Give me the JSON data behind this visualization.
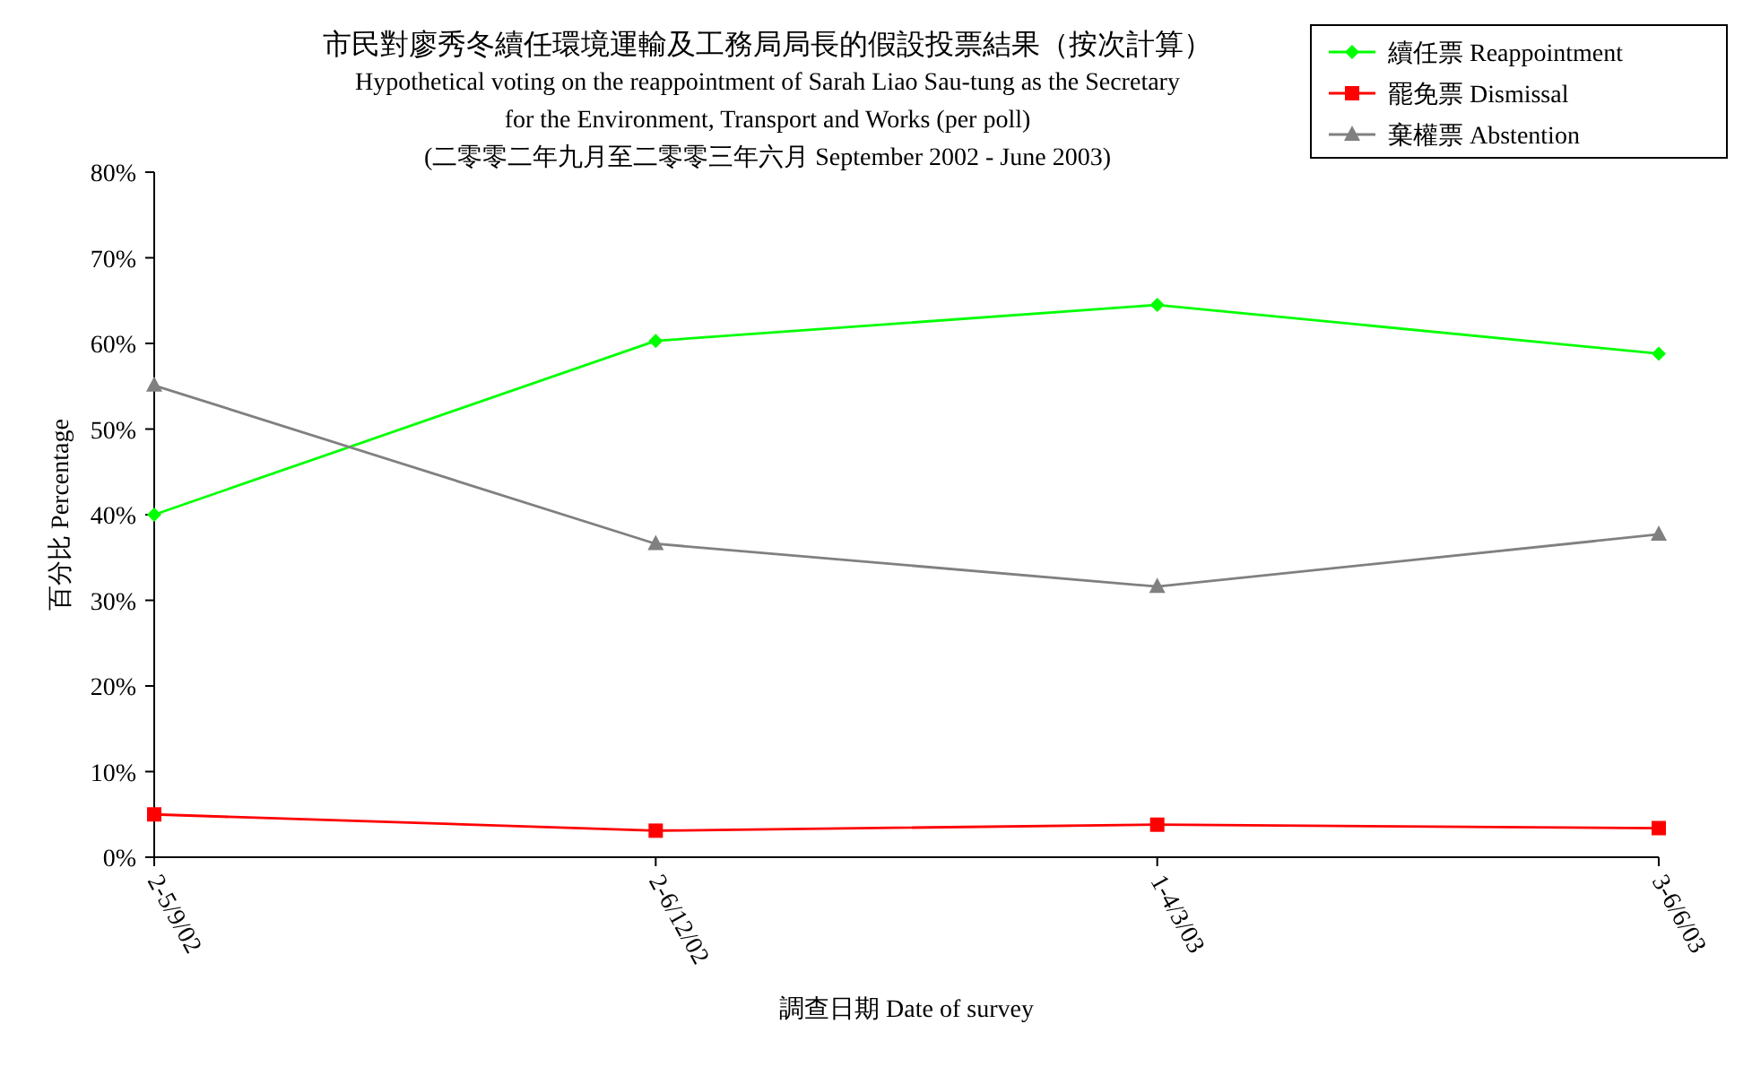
{
  "chart_data": {
    "type": "line",
    "title": "市民對廖秀冬續任環境運輸及工務局局長的假設投票結果（按次計算）",
    "subtitle": "Hypothetical voting on the reappointment of Sarah Liao Sau-tung as the Secretary\nfor the Environment, Transport and Works (per poll)\n(二零零二年九月至二零零三年六月 September 2002 - June 2003)",
    "xlabel": "調查日期 Date of survey",
    "ylabel": "百分比 Percentage",
    "categories": [
      "2-5/9/02",
      "2-6/12/02",
      "1-4/3/03",
      "3-6/6/03"
    ],
    "series": [
      {
        "name": "續任票 Reappointment",
        "color": "#00ff00",
        "marker": "diamond",
        "values": [
          40.0,
          60.3,
          64.5,
          58.8
        ]
      },
      {
        "name": "罷免票 Dismissal",
        "color": "#ff0000",
        "marker": "square",
        "values": [
          5.0,
          3.1,
          3.8,
          3.4
        ]
      },
      {
        "name": "棄權票 Abstention",
        "color": "#808080",
        "marker": "triangle",
        "values": [
          55.1,
          36.6,
          31.6,
          37.7
        ]
      }
    ],
    "ylim": [
      0,
      80
    ],
    "yticks": [
      {
        "value": 0,
        "label": "0%"
      },
      {
        "value": 10,
        "label": "10%"
      },
      {
        "value": 20,
        "label": "20%"
      },
      {
        "value": 30,
        "label": "30%"
      },
      {
        "value": 40,
        "label": "40%"
      },
      {
        "value": 50,
        "label": "50%"
      },
      {
        "value": 60,
        "label": "60%"
      },
      {
        "value": 70,
        "label": "70%"
      },
      {
        "value": 80,
        "label": "80%"
      }
    ],
    "legend": "top right",
    "line_style": "solid"
  }
}
